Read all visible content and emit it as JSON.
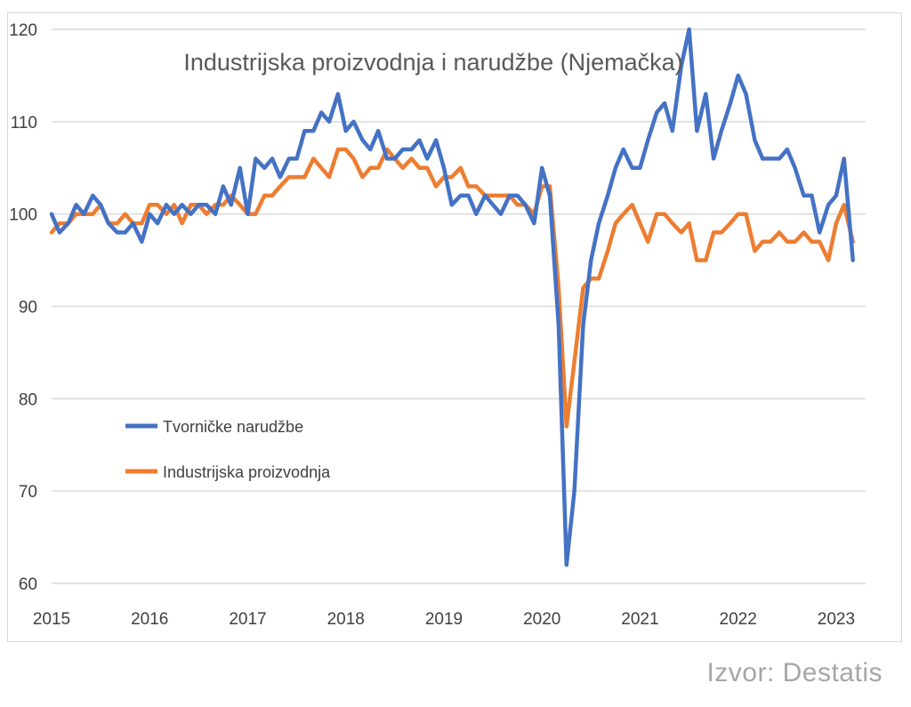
{
  "chart_data": {
    "type": "line",
    "title": "Industrijska proizvodnja i narudžbe (Njemačka)",
    "xlabel": "",
    "ylabel": "",
    "ylim": [
      60,
      120
    ],
    "yticks": [
      60,
      70,
      80,
      90,
      100,
      110,
      120
    ],
    "xlim": [
      2015,
      2023.3
    ],
    "xticks": [
      2015,
      2016,
      2017,
      2018,
      2019,
      2020,
      2021,
      2022,
      2023
    ],
    "grid": "horizontal",
    "legend_position": "center-left",
    "series": [
      {
        "name": "Tvorničke narudžbe",
        "color": "#4472c4",
        "x": [
          2015.0,
          2015.08,
          2015.17,
          2015.25,
          2015.33,
          2015.42,
          2015.5,
          2015.58,
          2015.67,
          2015.75,
          2015.83,
          2015.92,
          2016.0,
          2016.08,
          2016.17,
          2016.25,
          2016.33,
          2016.42,
          2016.5,
          2016.58,
          2016.67,
          2016.75,
          2016.83,
          2016.92,
          2017.0,
          2017.08,
          2017.17,
          2017.25,
          2017.33,
          2017.42,
          2017.5,
          2017.58,
          2017.67,
          2017.75,
          2017.83,
          2017.92,
          2018.0,
          2018.08,
          2018.17,
          2018.25,
          2018.33,
          2018.42,
          2018.5,
          2018.58,
          2018.67,
          2018.75,
          2018.83,
          2018.92,
          2019.0,
          2019.08,
          2019.17,
          2019.25,
          2019.33,
          2019.42,
          2019.5,
          2019.58,
          2019.67,
          2019.75,
          2019.83,
          2019.92,
          2020.0,
          2020.08,
          2020.17,
          2020.25,
          2020.33,
          2020.42,
          2020.5,
          2020.58,
          2020.67,
          2020.75,
          2020.83,
          2020.92,
          2021.0,
          2021.08,
          2021.17,
          2021.25,
          2021.33,
          2021.42,
          2021.5,
          2021.58,
          2021.67,
          2021.75,
          2021.83,
          2021.92,
          2022.0,
          2022.08,
          2022.17,
          2022.25,
          2022.33,
          2022.42,
          2022.5,
          2022.58,
          2022.67,
          2022.75,
          2022.83,
          2022.92,
          2023.0,
          2023.08,
          2023.17,
          2023.25
        ],
        "values": [
          100,
          98,
          99,
          101,
          100,
          102,
          101,
          99,
          98,
          98,
          99,
          97,
          100,
          99,
          101,
          100,
          101,
          100,
          101,
          101,
          100,
          103,
          101,
          105,
          100,
          106,
          105,
          106,
          104,
          106,
          106,
          109,
          109,
          111,
          110,
          113,
          109,
          110,
          108,
          107,
          109,
          106,
          106,
          107,
          107,
          108,
          106,
          108,
          105,
          101,
          102,
          102,
          100,
          102,
          101,
          100,
          102,
          102,
          101,
          99,
          105,
          102,
          88,
          62,
          70,
          88,
          95,
          99,
          102,
          105,
          107,
          105,
          105,
          108,
          111,
          112,
          109,
          116,
          120,
          109,
          113,
          106,
          109,
          112,
          115,
          113,
          108,
          106,
          106,
          106,
          107,
          105,
          102,
          102,
          98,
          101,
          102,
          106,
          95,
          null
        ],
        "values_note": "monthly index estimates read from gridlines"
      },
      {
        "name": "Industrijska proizvodnja",
        "color": "#ed7d31",
        "x": [
          2015.0,
          2015.08,
          2015.17,
          2015.25,
          2015.33,
          2015.42,
          2015.5,
          2015.58,
          2015.67,
          2015.75,
          2015.83,
          2015.92,
          2016.0,
          2016.08,
          2016.17,
          2016.25,
          2016.33,
          2016.42,
          2016.5,
          2016.58,
          2016.67,
          2016.75,
          2016.83,
          2016.92,
          2017.0,
          2017.08,
          2017.17,
          2017.25,
          2017.33,
          2017.42,
          2017.5,
          2017.58,
          2017.67,
          2017.75,
          2017.83,
          2017.92,
          2018.0,
          2018.08,
          2018.17,
          2018.25,
          2018.33,
          2018.42,
          2018.5,
          2018.58,
          2018.67,
          2018.75,
          2018.83,
          2018.92,
          2019.0,
          2019.08,
          2019.17,
          2019.25,
          2019.33,
          2019.42,
          2019.5,
          2019.58,
          2019.67,
          2019.75,
          2019.83,
          2019.92,
          2020.0,
          2020.08,
          2020.17,
          2020.25,
          2020.33,
          2020.42,
          2020.5,
          2020.58,
          2020.67,
          2020.75,
          2020.83,
          2020.92,
          2021.0,
          2021.08,
          2021.17,
          2021.25,
          2021.33,
          2021.42,
          2021.5,
          2021.58,
          2021.67,
          2021.75,
          2021.83,
          2021.92,
          2022.0,
          2022.08,
          2022.17,
          2022.25,
          2022.33,
          2022.42,
          2022.5,
          2022.58,
          2022.67,
          2022.75,
          2022.83,
          2022.92,
          2023.0,
          2023.08,
          2023.17,
          2023.25
        ],
        "values": [
          98,
          99,
          99,
          100,
          100,
          100,
          101,
          99,
          99,
          100,
          99,
          99,
          101,
          101,
          100,
          101,
          99,
          101,
          101,
          100,
          101,
          101,
          102,
          101,
          100,
          100,
          102,
          102,
          103,
          104,
          104,
          104,
          106,
          105,
          104,
          107,
          107,
          106,
          104,
          105,
          105,
          107,
          106,
          105,
          106,
          105,
          105,
          103,
          104,
          104,
          105,
          103,
          103,
          102,
          102,
          102,
          102,
          101,
          101,
          100,
          103,
          103,
          92,
          77,
          84,
          92,
          93,
          93,
          96,
          99,
          100,
          101,
          99,
          97,
          100,
          100,
          99,
          98,
          99,
          95,
          95,
          98,
          98,
          99,
          100,
          100,
          96,
          97,
          97,
          98,
          97,
          97,
          98,
          97,
          97,
          95,
          99,
          101,
          97,
          null
        ]
      }
    ]
  },
  "legend": {
    "items": [
      {
        "label": "Tvorničke narudžbe",
        "color": "#4472c4"
      },
      {
        "label": "Industrijska proizvodnja",
        "color": "#ed7d31"
      }
    ]
  },
  "source": "Izvor: Destatis",
  "gridline_color": "#d9d9d9"
}
